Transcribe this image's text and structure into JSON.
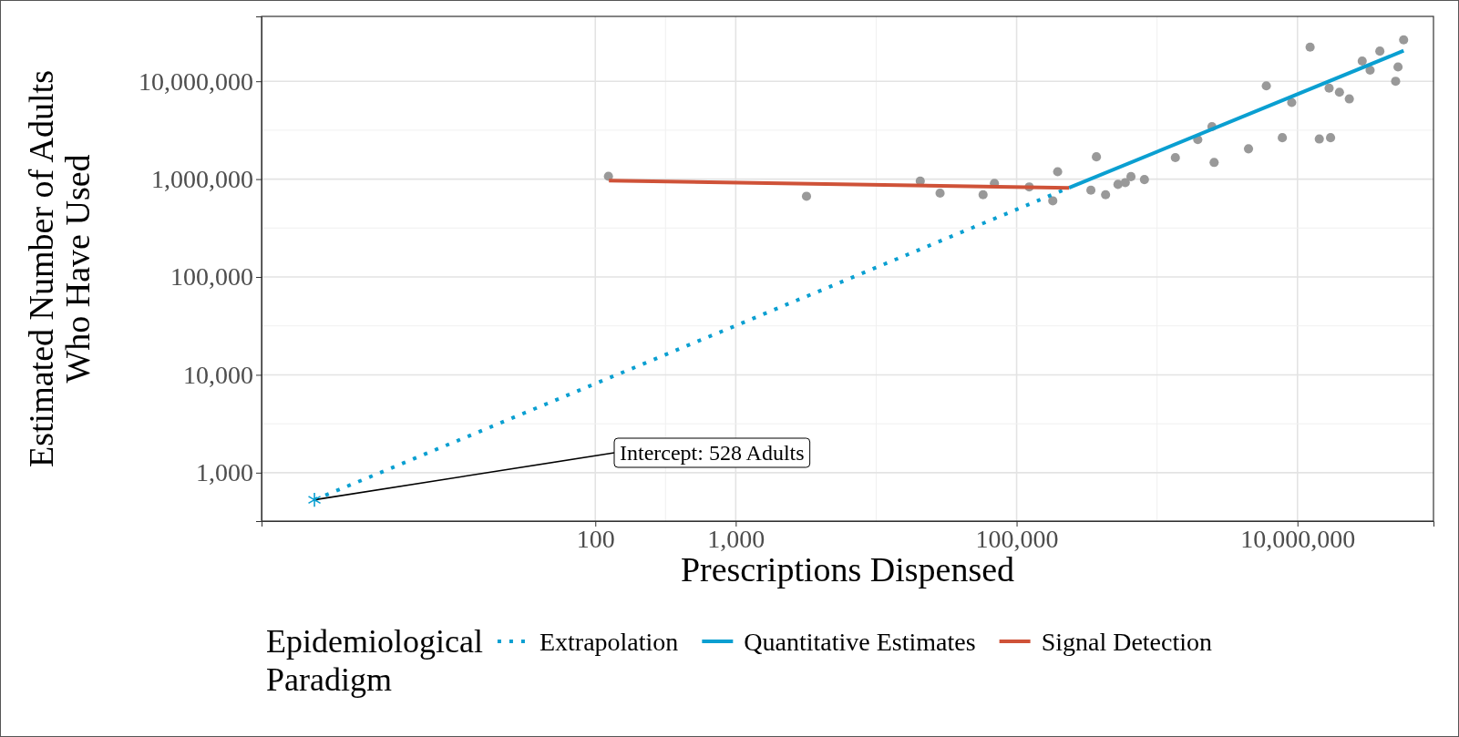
{
  "chart_data": {
    "type": "scatter",
    "xlabel": "Prescriptions Dispensed",
    "ylabel": "Estimated Number of Adults Who Have Used",
    "legend_title": "Epidemiological Paradigm",
    "legend": "bottom",
    "log": "xy",
    "grid": true,
    "xlim": [
      0.42,
      93000000
    ],
    "ylim": [
      320,
      46000000
    ],
    "xticks": [
      {
        "value": 100,
        "label": "100"
      },
      {
        "value": 1000,
        "label": "1,000"
      },
      {
        "value": 100000,
        "label": "100,000"
      },
      {
        "value": 10000000,
        "label": "10,000,000"
      }
    ],
    "yticks": [
      {
        "value": 1000,
        "label": "1,000"
      },
      {
        "value": 10000,
        "label": "10,000"
      },
      {
        "value": 100000,
        "label": "100,000"
      },
      {
        "value": 1000000,
        "label": "1,000,000"
      },
      {
        "value": 10000000,
        "label": "10,000,000"
      }
    ],
    "annotations": [
      {
        "text": "Intercept: 528 Adults",
        "x": 1,
        "y": 528
      }
    ],
    "series": [
      {
        "color": "#999999",
        "marker": "circle",
        "x": [
          124,
          3190,
          20600,
          28500,
          57700,
          69500,
          123000,
          181000,
          196000,
          370000,
          338000,
          430000,
          527000,
          594000,
          652000,
          813000,
          1350000,
          1950000,
          2460000,
          2550000,
          4480000,
          6000000,
          7800000,
          9100000,
          12300000,
          14300000,
          17200000,
          16800000,
          19900000,
          23400000,
          28900000,
          32900000,
          38600000,
          50000000,
          52000000,
          57000000
        ],
        "values": [
          1070000,
          668000,
          955000,
          719000,
          692000,
          906000,
          832000,
          600000,
          1190000,
          1690000,
          771000,
          692000,
          883000,
          921000,
          1060000,
          989000,
          1660000,
          2530000,
          3440000,
          1480000,
          2040000,
          8980000,
          2650000,
          6060000,
          22300000,
          2570000,
          2650000,
          8500000,
          7730000,
          6600000,
          16100000,
          13000000,
          20300000,
          10000000,
          14000000,
          26500000
        ]
      },
      {
        "type": "line",
        "name": "Extrapolation",
        "color": "#0a9fd1",
        "line_style": "dotted",
        "x": [
          1,
          236000
        ],
        "values": [
          528,
          815000
        ]
      },
      {
        "type": "line",
        "name": "Quantitative Estimates",
        "color": "#0a9fd1",
        "line_style": "solid",
        "x": [
          236000,
          57000000
        ],
        "values": [
          815000,
          20500000
        ]
      },
      {
        "type": "line",
        "name": "Signal Detection",
        "color": "#cf5238",
        "line_style": "solid",
        "x": [
          125,
          236000
        ],
        "values": [
          964000,
          815000
        ]
      },
      {
        "color": "#0a9fd1",
        "marker": "cross",
        "x": [
          1
        ],
        "values": [
          528
        ]
      }
    ]
  }
}
